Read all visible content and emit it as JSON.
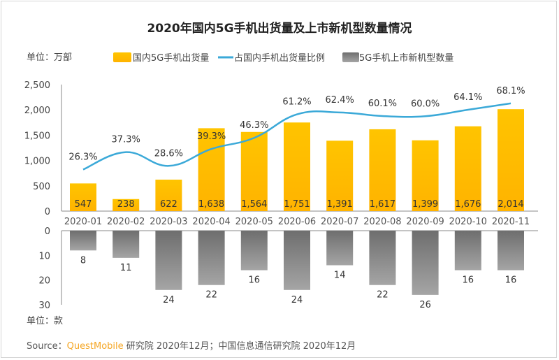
{
  "chart_data": {
    "type": "bar",
    "title": "2020年国内5G手机出货量及上市新机型数量情况",
    "unit_top": "单位：万部",
    "unit_bottom": "单位：款",
    "categories": [
      "2020-01",
      "2020-02",
      "2020-03",
      "2020-04",
      "2020-05",
      "2020-06",
      "2020-07",
      "2020-08",
      "2020-09",
      "2020-10",
      "2020-11"
    ],
    "series": [
      {
        "name": "国内5G手机出货量",
        "type": "bar",
        "color": "#FFC000",
        "values": [
          547,
          238,
          622,
          1638,
          1564,
          1751,
          1391,
          1617,
          1399,
          1676,
          2014
        ],
        "labels": [
          "547",
          "238",
          "622",
          "1,638",
          "1,564",
          "1,751",
          "1,391",
          "1,617",
          "1,399",
          "1,676",
          "2,014"
        ]
      },
      {
        "name": "占国内手机出货量比例",
        "type": "line",
        "color": "#3BA9D8",
        "values": [
          26.3,
          37.3,
          28.6,
          39.3,
          46.3,
          61.2,
          62.4,
          60.1,
          60.0,
          64.1,
          68.1
        ],
        "labels": [
          "26.3%",
          "37.3%",
          "28.6%",
          "39.3%",
          "46.3%",
          "61.2%",
          "62.4%",
          "60.1%",
          "60.0%",
          "64.1%",
          "68.1%"
        ]
      },
      {
        "name": "5G手机上市新机型数量",
        "type": "bar",
        "color": "#8C8C8C",
        "values": [
          8,
          11,
          24,
          22,
          16,
          24,
          14,
          22,
          26,
          16,
          16
        ]
      }
    ],
    "y_top": {
      "range": [
        0,
        2500
      ],
      "ticks": [
        "0",
        "500",
        "1,000",
        "1,500",
        "2,000",
        "2,500"
      ]
    },
    "y_line_hidden_range": [
      0,
      80
    ],
    "y_bottom": {
      "range": [
        0,
        30
      ],
      "inverted": true,
      "ticks": [
        "0",
        "10",
        "20",
        "30"
      ]
    },
    "legend_placement": "top",
    "grid": false
  },
  "source": {
    "prefix": "Source：",
    "brand": "QuestMobile",
    "rest": " 研究院 2020年12月；中国信息通信研究院 2020年12月",
    "brand_color": "#F5A623"
  }
}
